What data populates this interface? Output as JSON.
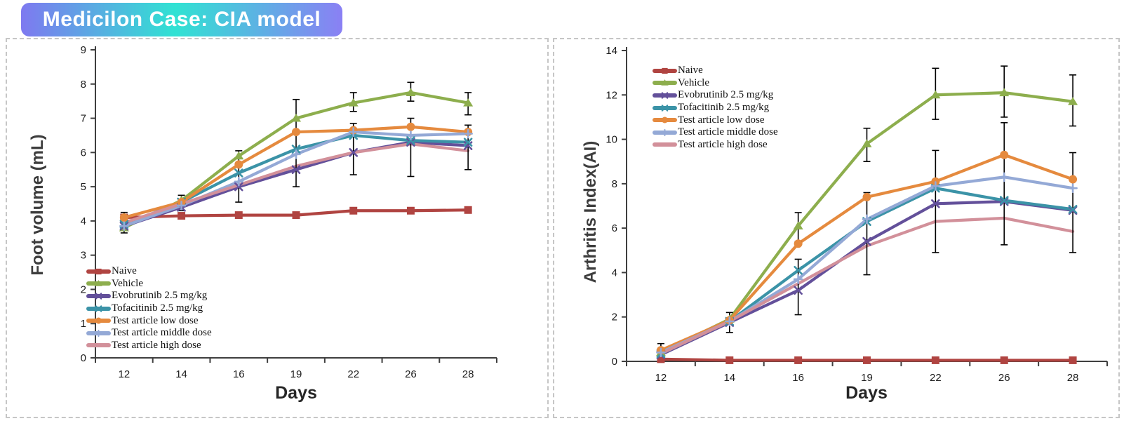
{
  "title_badge": {
    "text": "Medicilon Case: CIA model",
    "gradient": [
      "#7e79f0",
      "#30e2d3",
      "#8a80f4"
    ]
  },
  "chart_data": [
    {
      "type": "line",
      "title": "",
      "ylabel": "Foot volume (mL)",
      "xlabel": "Days",
      "ylim": [
        0,
        9
      ],
      "ytick_step": 1,
      "grid": false,
      "legend_position": "bottom-left",
      "categories": [
        12,
        14,
        16,
        19,
        22,
        26,
        28
      ],
      "series": [
        {
          "name": "Naive",
          "color": "#b04441",
          "marker": "square",
          "values": [
            4.1,
            4.15,
            4.17,
            4.17,
            4.3,
            4.3,
            4.32
          ]
        },
        {
          "name": "Vehicle",
          "color": "#8dae4d",
          "marker": "triangle",
          "values": [
            3.8,
            4.6,
            5.9,
            7.0,
            7.45,
            7.75,
            7.45
          ]
        },
        {
          "name": "Evobrutinib 2.5 mg/kg",
          "color": "#63509a",
          "marker": "x",
          "values": [
            3.85,
            4.4,
            5.0,
            5.5,
            6.0,
            6.3,
            6.2
          ]
        },
        {
          "name": "Tofacitinib 2.5 mg/kg",
          "color": "#3b93a7",
          "marker": "x",
          "values": [
            3.9,
            4.55,
            5.4,
            6.1,
            6.5,
            6.35,
            6.3
          ]
        },
        {
          "name": "Test article low dose",
          "color": "#e58a3e",
          "marker": "circle",
          "values": [
            4.1,
            4.55,
            5.65,
            6.6,
            6.65,
            6.75,
            6.6
          ]
        },
        {
          "name": "Test article middle dose",
          "color": "#94a9d6",
          "marker": "plus",
          "values": [
            3.85,
            4.45,
            5.15,
            5.95,
            6.6,
            6.5,
            6.55
          ]
        },
        {
          "name": "Test article high dose",
          "color": "#d2909a",
          "marker": "none",
          "values": [
            3.95,
            4.5,
            5.05,
            5.6,
            6.0,
            6.25,
            6.05
          ]
        }
      ],
      "error_bars": [
        {
          "i": 0,
          "top": 4.25,
          "bottom": 3.65
        },
        {
          "i": 1,
          "top": 4.75,
          "bottom": 4.3
        },
        {
          "i": 2,
          "top": 6.05,
          "bottom": 4.55
        },
        {
          "i": 3,
          "top": 7.55,
          "bottom": 5.0
        },
        {
          "i": 4,
          "top": 7.75,
          "bottom": 7.2
        },
        {
          "i": 4,
          "top": 6.85,
          "bottom": 5.35
        },
        {
          "i": 5,
          "top": 8.05,
          "bottom": 7.5
        },
        {
          "i": 5,
          "top": 7.0,
          "bottom": 5.3
        },
        {
          "i": 6,
          "top": 7.75,
          "bottom": 7.1
        },
        {
          "i": 6,
          "top": 6.8,
          "bottom": 5.5
        }
      ]
    },
    {
      "type": "line",
      "title": "",
      "ylabel": "Arthritis Index(AI)",
      "xlabel": "Days",
      "ylim": [
        0,
        14
      ],
      "ytick_step": 2,
      "grid": false,
      "legend_position": "top-left",
      "categories": [
        12,
        14,
        16,
        19,
        22,
        26,
        28
      ],
      "series": [
        {
          "name": "Naive",
          "color": "#b04441",
          "marker": "square",
          "values": [
            0.1,
            0.05,
            0.05,
            0.05,
            0.05,
            0.05,
            0.05
          ]
        },
        {
          "name": "Vehicle",
          "color": "#8dae4d",
          "marker": "triangle",
          "values": [
            0.4,
            1.9,
            6.1,
            9.8,
            12.0,
            12.1,
            11.7
          ]
        },
        {
          "name": "Evobrutinib 2.5 mg/kg",
          "color": "#63509a",
          "marker": "x",
          "values": [
            0.3,
            1.75,
            3.2,
            5.4,
            7.1,
            7.2,
            6.8
          ]
        },
        {
          "name": "Tofacitinib 2.5 mg/kg",
          "color": "#3b93a7",
          "marker": "x",
          "values": [
            0.35,
            1.8,
            4.1,
            6.3,
            7.8,
            7.25,
            6.85
          ]
        },
        {
          "name": "Test article low dose",
          "color": "#e58a3e",
          "marker": "circle",
          "values": [
            0.5,
            1.85,
            5.3,
            7.4,
            8.1,
            9.3,
            8.2
          ]
        },
        {
          "name": "Test article middle dose",
          "color": "#94a9d6",
          "marker": "plus",
          "values": [
            0.4,
            1.8,
            3.7,
            6.4,
            7.9,
            8.3,
            7.8
          ]
        },
        {
          "name": "Test article high dose",
          "color": "#d2909a",
          "marker": "none",
          "values": [
            0.35,
            1.8,
            3.5,
            5.2,
            6.3,
            6.45,
            5.85
          ]
        }
      ],
      "error_bars": [
        {
          "i": 0,
          "top": 0.8,
          "bottom": 0.1
        },
        {
          "i": 1,
          "top": 2.2,
          "bottom": 1.3
        },
        {
          "i": 2,
          "top": 6.7,
          "bottom": 5.4
        },
        {
          "i": 2,
          "top": 4.6,
          "bottom": 2.1
        },
        {
          "i": 3,
          "top": 10.5,
          "bottom": 9.0
        },
        {
          "i": 3,
          "top": 7.6,
          "bottom": 3.9
        },
        {
          "i": 4,
          "top": 13.2,
          "bottom": 10.9
        },
        {
          "i": 4,
          "top": 9.5,
          "bottom": 4.9
        },
        {
          "i": 5,
          "top": 13.3,
          "bottom": 11.0
        },
        {
          "i": 5,
          "top": 10.75,
          "bottom": 5.25
        },
        {
          "i": 6,
          "top": 12.9,
          "bottom": 10.6
        },
        {
          "i": 6,
          "top": 9.4,
          "bottom": 4.9
        }
      ]
    }
  ]
}
